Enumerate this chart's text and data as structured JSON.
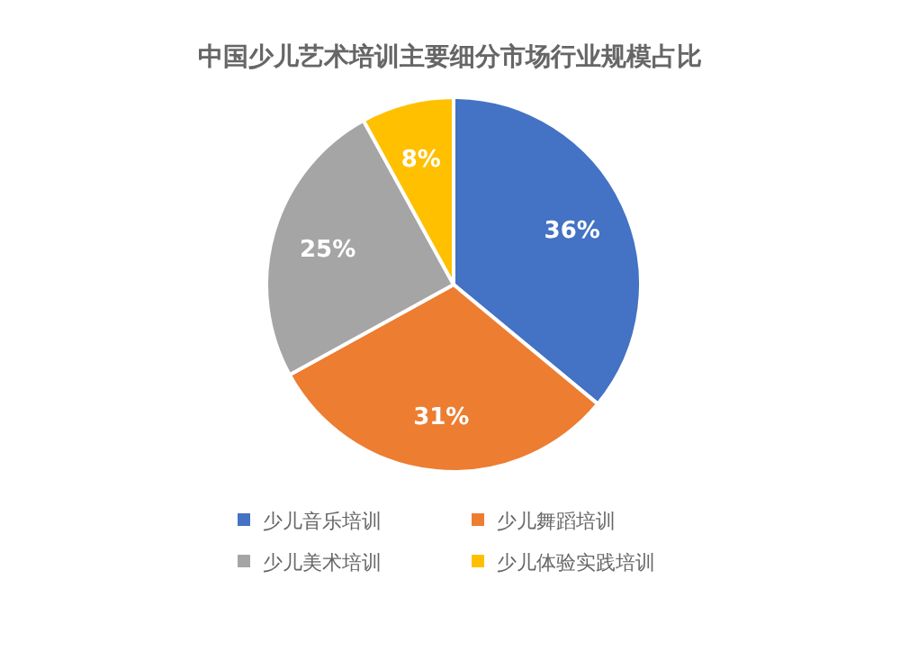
{
  "chart_data": {
    "type": "pie",
    "title": "中国少儿艺术培训主要细分市场行业规模占比",
    "categories": [
      "少儿音乐培训",
      "少儿舞蹈培训",
      "少儿美术培训",
      "少儿体验实践培训"
    ],
    "values": [
      36,
      31,
      25,
      8
    ],
    "colors": [
      "#4472c4",
      "#ed7d31",
      "#a5a5a5",
      "#ffc000"
    ],
    "value_labels": [
      "36%",
      "31%",
      "25%",
      "8%"
    ],
    "legend": "bottom"
  }
}
